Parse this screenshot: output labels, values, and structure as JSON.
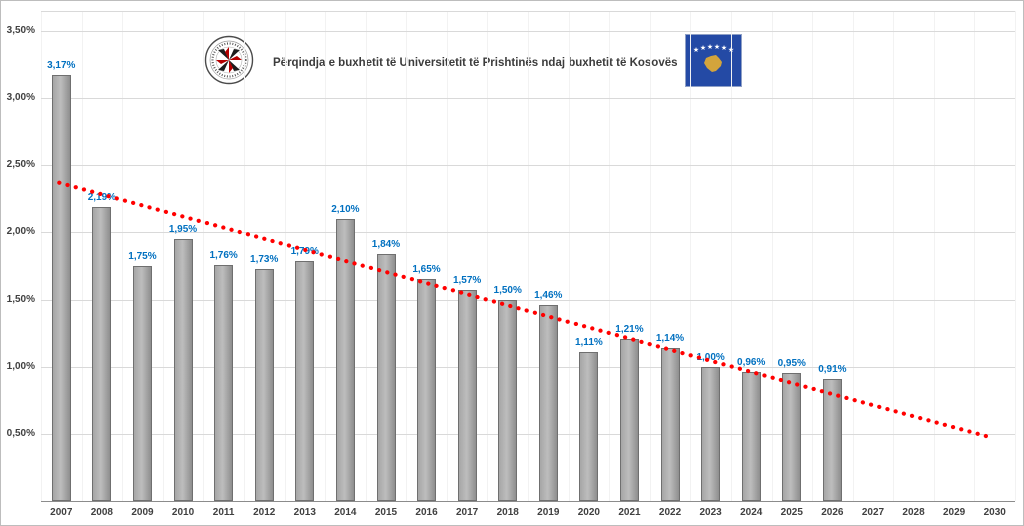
{
  "chart_data": {
    "type": "bar",
    "title": "Përqindja e buxhetit të Universitetit të Prishtinës ndaj buxhetit të Kosovës",
    "categories": [
      "2007",
      "2008",
      "2009",
      "2010",
      "2011",
      "2012",
      "2013",
      "2014",
      "2015",
      "2016",
      "2017",
      "2018",
      "2019",
      "2020",
      "2021",
      "2022",
      "2023",
      "2024",
      "2025",
      "2026",
      "2027",
      "2028",
      "2029",
      "2030"
    ],
    "values": [
      3.17,
      2.19,
      1.75,
      1.95,
      1.76,
      1.73,
      1.79,
      2.1,
      1.84,
      1.65,
      1.57,
      1.5,
      1.46,
      1.11,
      1.21,
      1.14,
      1.0,
      0.96,
      0.95,
      0.91,
      null,
      null,
      null,
      null
    ],
    "value_labels": [
      "3,17%",
      "2,19%",
      "1,75%",
      "1,95%",
      "1,76%",
      "1,73%",
      "1,79%",
      "2,10%",
      "1,84%",
      "1,65%",
      "1,57%",
      "1,50%",
      "1,46%",
      "1,11%",
      "1,21%",
      "1,14%",
      "1,00%",
      "0,96%",
      "0,95%",
      "0,91%",
      "",
      "",
      "",
      ""
    ],
    "xlabel": "",
    "ylabel": "",
    "ylim": [
      0,
      3.5
    ],
    "grid": true,
    "legend_position": "none",
    "y_ticks": [
      {
        "value": 3.5,
        "label": "3,50%"
      },
      {
        "value": 3.0,
        "label": "3,00%"
      },
      {
        "value": 2.5,
        "label": "2,50%"
      },
      {
        "value": 2.0,
        "label": "2,00%"
      },
      {
        "value": 1.5,
        "label": "1,50%"
      },
      {
        "value": 1.0,
        "label": "1,00%"
      },
      {
        "value": 0.5,
        "label": "0,50%"
      }
    ],
    "trendline": {
      "type": "linear",
      "style": "dotted",
      "start_category": "2007",
      "end_category": "2030",
      "start_value": 2.37,
      "end_value": 0.47,
      "color": "#ff0000"
    },
    "colors": {
      "bar_fill": "#a6a6a6",
      "bar_border": "#6f6f6f",
      "value_label": "#0070c0",
      "axis_text": "#404040",
      "gridline": "#d9d9d9",
      "trend": "#ff0000"
    }
  },
  "icons": {
    "university_logo": "university-of-prishtina-seal",
    "kosovo_flag": "kosovo-flag"
  }
}
